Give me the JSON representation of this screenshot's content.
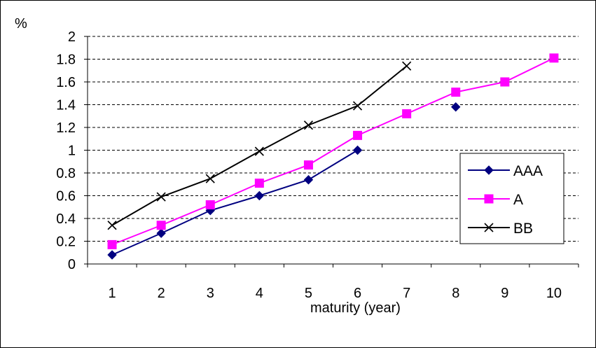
{
  "chart_data": {
    "type": "line",
    "ylabel": "%",
    "xlabel": "maturity (year)",
    "categories": [
      "1",
      "2",
      "3",
      "4",
      "5",
      "6",
      "7",
      "8",
      "9",
      "10"
    ],
    "ylim": [
      0,
      2
    ],
    "yticks": [
      "0",
      "0.2",
      "0.4",
      "0.6",
      "0.8",
      "1",
      "1.2",
      "1.4",
      "1.6",
      "1.8",
      "2"
    ],
    "grid": "horizontal-dashed",
    "legend_position": "right",
    "series": [
      {
        "name": "AAA",
        "color": "#000080",
        "marker": "diamond",
        "values": [
          0.08,
          0.27,
          0.47,
          0.6,
          0.74,
          1.0,
          null,
          1.38,
          null,
          null
        ]
      },
      {
        "name": "A",
        "color": "#ff00ff",
        "marker": "square",
        "values": [
          0.17,
          0.34,
          0.52,
          0.71,
          0.87,
          1.13,
          1.32,
          1.51,
          1.6,
          1.81
        ]
      },
      {
        "name": "BB",
        "color": "#000000",
        "marker": "x",
        "values": [
          0.34,
          0.59,
          0.75,
          0.99,
          1.22,
          1.39,
          1.74,
          null,
          null,
          null
        ]
      }
    ]
  }
}
